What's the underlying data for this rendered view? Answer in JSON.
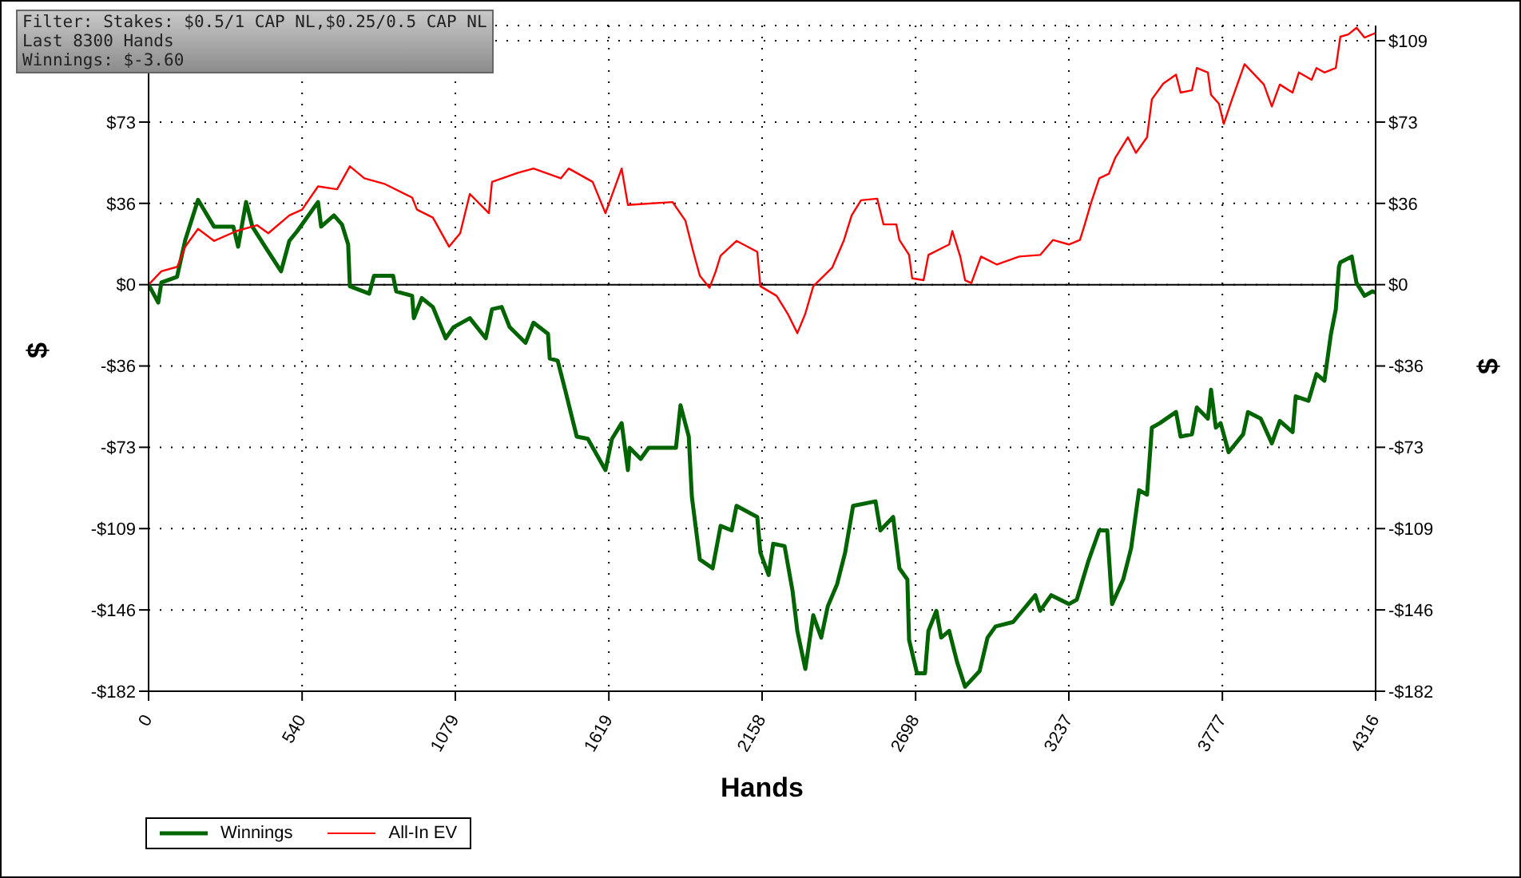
{
  "chart_data": {
    "type": "line",
    "xlabel": "Hands",
    "ylabel": "$",
    "y2label": "$",
    "annotations": [
      "Filter: Stakes: $0.5/1 CAP NL,$0.25/0.5 CAP NL",
      "Last  8300 Hands",
      "Winnings: $-3.60"
    ],
    "xlim": [
      0,
      4316
    ],
    "xticks": [
      0,
      540,
      1079,
      1619,
      2158,
      2698,
      3237,
      3777,
      4316
    ],
    "ylim": [
      -182,
      116
    ],
    "yticks": [
      {
        "value": -182,
        "label": "-$182"
      },
      {
        "value": -145.6,
        "label": "-$146"
      },
      {
        "value": -109.2,
        "label": "-$109"
      },
      {
        "value": -72.8,
        "label": "-$73"
      },
      {
        "value": -36.4,
        "label": "-$36"
      },
      {
        "value": 0,
        "label": "$0"
      },
      {
        "value": 36.4,
        "label": "$36"
      },
      {
        "value": 72.8,
        "label": "$73"
      },
      {
        "value": 109.2,
        "label": null
      }
    ],
    "y2lim": [
      -182,
      116
    ],
    "y2ticks": [
      {
        "value": -182,
        "label": "-$182"
      },
      {
        "value": -145.6,
        "label": "-$146"
      },
      {
        "value": -109.2,
        "label": "-$109"
      },
      {
        "value": -72.8,
        "label": "-$73"
      },
      {
        "value": -36.4,
        "label": "-$36"
      },
      {
        "value": 0,
        "label": "$0"
      },
      {
        "value": 36.4,
        "label": "$36"
      },
      {
        "value": 72.8,
        "label": "$73"
      },
      {
        "value": 109.2,
        "label": "$109"
      }
    ],
    "grid": true,
    "legend": "bottom left",
    "marker": "none",
    "line_style": "solid",
    "ref_lines": [
      {
        "axis": "y",
        "value": 0,
        "color": "#000000"
      }
    ],
    "series": [
      {
        "name": "Winnings",
        "color": "#006400",
        "x": [
          0,
          34,
          45,
          100,
          129,
          174,
          230,
          298,
          315,
          343,
          365,
          410,
          466,
          495,
          523,
          596,
          607,
          652,
          680,
          702,
          708,
          776,
          793,
          860,
          871,
          927,
          933,
          961,
          1000,
          1045,
          1073,
          1130,
          1186,
          1208,
          1242,
          1270,
          1326,
          1354,
          1405,
          1411,
          1439,
          1467,
          1506,
          1545,
          1607,
          1630,
          1664,
          1686,
          1692,
          1731,
          1759,
          1855,
          1871,
          1900,
          1911,
          1939,
          1984,
          2012,
          2051,
          2068,
          2141,
          2152,
          2181,
          2197,
          2237,
          2265,
          2282,
          2310,
          2338,
          2366,
          2389,
          2422,
          2450,
          2478,
          2557,
          2574,
          2619,
          2641,
          2669,
          2675,
          2703,
          2731,
          2743,
          2771,
          2788,
          2816,
          2844,
          2872,
          2923,
          2951,
          2979,
          3041,
          3119,
          3136,
          3175,
          3237,
          3265,
          3305,
          3344,
          3372,
          3389,
          3428,
          3456,
          3484,
          3512,
          3529,
          3557,
          3614,
          3630,
          3670,
          3687,
          3726,
          3737,
          3754,
          3771,
          3799,
          3850,
          3867,
          3912,
          3951,
          3979,
          4024,
          4035,
          4080,
          4108,
          4136,
          4159,
          4176,
          4187,
          4192,
          4232,
          4249,
          4277,
          4305,
          4316
        ],
        "values": [
          0,
          -8,
          1,
          3.5,
          20,
          38,
          26,
          26,
          17,
          37,
          26,
          17,
          6,
          19.6,
          24,
          37,
          26,
          31,
          27,
          18,
          -0.7,
          -4,
          4,
          4,
          -3,
          -5,
          -15,
          -6,
          -10,
          -24,
          -19,
          -15,
          -24,
          -11,
          -10,
          -19,
          -26,
          -17,
          -22,
          -33,
          -34,
          -48,
          -68,
          -69,
          -83,
          -69,
          -62,
          -83,
          -73,
          -78,
          -73,
          -73,
          -54,
          -68,
          -95,
          -123,
          -127,
          -108,
          -110,
          -99,
          -104,
          -120,
          -130,
          -116,
          -117,
          -137,
          -155,
          -172,
          -148,
          -158,
          -144,
          -134,
          -120,
          -99,
          -97,
          -110,
          -104,
          -127,
          -132,
          -159,
          -174,
          -174,
          -155,
          -146,
          -158,
          -155,
          -169,
          -180,
          -173,
          -158,
          -153,
          -151,
          -139,
          -146,
          -139,
          -143,
          -141,
          -124,
          -110,
          -110,
          -143,
          -132,
          -118,
          -92,
          -94,
          -64,
          -62,
          -57,
          -68,
          -67,
          -55,
          -60,
          -47,
          -64,
          -62,
          -75,
          -67,
          -57,
          -60,
          -71,
          -61,
          -66,
          -50,
          -52,
          -40,
          -43,
          -22,
          -11,
          8,
          10,
          12.6,
          0.7,
          -5,
          -3,
          -3.6
        ]
      },
      {
        "name": "All-In EV",
        "color": "#ff0000",
        "x": [
          0,
          45,
          101,
          129,
          174,
          230,
          309,
          382,
          421,
          495,
          540,
          596,
          663,
          708,
          759,
          832,
          927,
          944,
          1000,
          1057,
          1096,
          1130,
          1197,
          1208,
          1298,
          1354,
          1450,
          1478,
          1562,
          1607,
          1664,
          1686,
          1843,
          1888,
          1916,
          1939,
          1973,
          1995,
          2012,
          2068,
          2141,
          2152,
          2209,
          2248,
          2282,
          2310,
          2338,
          2405,
          2445,
          2473,
          2506,
          2563,
          2585,
          2630,
          2641,
          2675,
          2686,
          2726,
          2743,
          2816,
          2827,
          2855,
          2872,
          2894,
          2928,
          2984,
          3063,
          3136,
          3181,
          3237,
          3276,
          3293,
          3316,
          3344,
          3378,
          3400,
          3445,
          3473,
          3512,
          3529,
          3569,
          3614,
          3630,
          3670,
          3687,
          3726,
          3737,
          3765,
          3782,
          3810,
          3855,
          3923,
          3951,
          3979,
          4024,
          4046,
          4091,
          4108,
          4136,
          4176,
          4192,
          4220,
          4249,
          4277,
          4316
        ],
        "values": [
          0,
          6,
          8,
          17,
          25,
          19.6,
          24,
          26.6,
          23,
          31,
          33.6,
          44,
          42.7,
          53,
          47.6,
          45,
          39,
          33.6,
          30,
          17,
          23,
          40.6,
          32,
          46,
          50,
          52,
          47.6,
          52,
          46,
          32,
          52,
          35.7,
          37,
          28.7,
          14.7,
          4,
          -1.4,
          6,
          13,
          19.6,
          14.7,
          -0.7,
          -5,
          -13,
          -21.7,
          -13,
          -0.7,
          7.7,
          19.6,
          31,
          37.8,
          38.5,
          27,
          27,
          20,
          13.3,
          2.8,
          2,
          13.3,
          18,
          24,
          12.6,
          2,
          0.7,
          12.6,
          9,
          12.6,
          13.3,
          20,
          18,
          20,
          27,
          37,
          47.6,
          49.7,
          56.7,
          66,
          59,
          66,
          83,
          90,
          94,
          86,
          87,
          97,
          95,
          85,
          81,
          72,
          82.6,
          98.7,
          89.6,
          79.8,
          89.6,
          86,
          95,
          91.7,
          97,
          95,
          97,
          111,
          112,
          115,
          110.6,
          112.7
        ]
      }
    ]
  }
}
